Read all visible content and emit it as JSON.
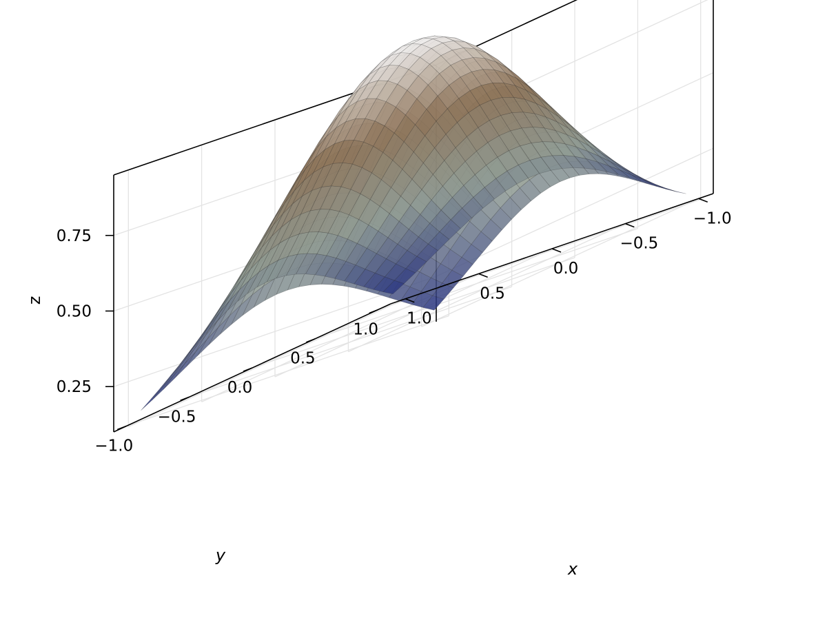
{
  "chart_data": {
    "type": "surface3d",
    "xlabel": "x",
    "ylabel": "y",
    "zlabel": "z",
    "xlim": [
      -1.1,
      1.1
    ],
    "ylim": [
      -1.1,
      1.1
    ],
    "zlim": [
      0.1,
      0.95
    ],
    "x_ticks": [
      {
        "value": -1.0,
        "label": "−1.0"
      },
      {
        "value": -0.5,
        "label": "−0.5"
      },
      {
        "value": 0.0,
        "label": "0.0"
      },
      {
        "value": 0.5,
        "label": "0.5"
      },
      {
        "value": 1.0,
        "label": "1.0"
      }
    ],
    "y_ticks": [
      {
        "value": -1.0,
        "label": "−1.0"
      },
      {
        "value": -0.5,
        "label": "−0.5"
      },
      {
        "value": 0.0,
        "label": "0.0"
      },
      {
        "value": 0.5,
        "label": "0.5"
      },
      {
        "value": 1.0,
        "label": "1.0"
      }
    ],
    "z_ticks": [
      {
        "value": 0.25,
        "label": "0.25"
      },
      {
        "value": 0.5,
        "label": "0.50"
      },
      {
        "value": 0.75,
        "label": "0.75"
      }
    ],
    "surface": {
      "function": "exp(-(x^2 + y^2))",
      "x_range": [
        -1.0,
        1.0
      ],
      "y_range": [
        -1.0,
        1.0
      ],
      "min_value": 0.135,
      "max_value": 1.0,
      "colormap": [
        "#27327f",
        "#8e9a93",
        "#8c7257",
        "#f2f2f2"
      ],
      "wireframe": true,
      "transparent": true
    },
    "grid": true,
    "legend": "none"
  }
}
